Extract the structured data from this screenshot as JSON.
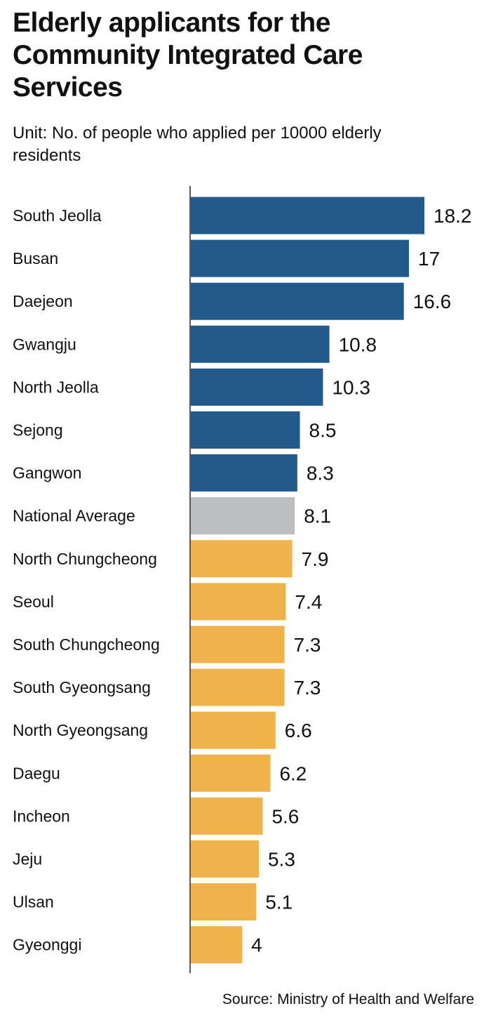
{
  "chart_data": {
    "type": "bar",
    "orientation": "horizontal",
    "title": "Elderly applicants for the Community Integrated Care Services",
    "subtitle": "Unit: No. of people who applied per 10000 elderly residents",
    "source": "Source: Ministry of Health and Welfare",
    "categories": [
      "South Jeolla",
      "Busan",
      "Daejeon",
      "Gwangju",
      "North Jeolla",
      "Sejong",
      "Gangwon",
      "National Average",
      "North Chungcheong",
      "Seoul",
      "South Chungcheong",
      "South Gyeongsang",
      "North Gyeongsang",
      "Daegu",
      "Incheon",
      "Jeju",
      "Ulsan",
      "Gyeonggi"
    ],
    "values": [
      18.2,
      17,
      16.6,
      10.8,
      10.3,
      8.5,
      8.3,
      8.1,
      7.9,
      7.4,
      7.3,
      7.3,
      6.6,
      6.2,
      5.6,
      5.3,
      5.1,
      4
    ],
    "value_labels": [
      "18.2",
      "17",
      "16.6",
      "10.8",
      "10.3",
      "8.5",
      "8.3",
      "8.1",
      "7.9",
      "7.4",
      "7.3",
      "7.3",
      "6.6",
      "6.2",
      "5.6",
      "5.3",
      "5.1",
      "4"
    ],
    "groups": [
      "above",
      "above",
      "above",
      "above",
      "above",
      "above",
      "above",
      "average",
      "below",
      "below",
      "below",
      "below",
      "below",
      "below",
      "below",
      "below",
      "below",
      "below"
    ],
    "xlim": [
      0,
      18.2
    ],
    "grid": false,
    "colors": {
      "above": "#235a8c",
      "average": "#bcbdc0",
      "below": "#f0b24b",
      "axis": "#222222"
    }
  }
}
